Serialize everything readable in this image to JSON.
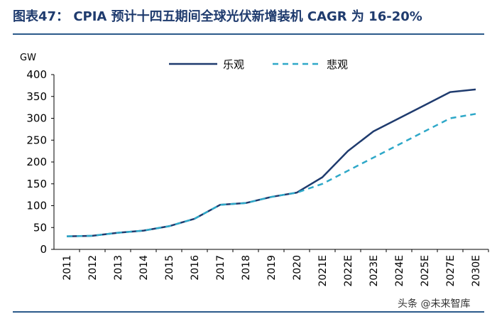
{
  "title": "图表47：   CPIA 预计十四五期间全球光伏新增装机 CAGR 为 16-20%",
  "watermark": "头条 @未来智库",
  "colors": {
    "series_1": "#1f3b6e",
    "series_2": "#2ea8c8",
    "title": "#1f3b6e",
    "rule": "#2b5a8a"
  },
  "chart_data": {
    "type": "line",
    "title": "CPIA 预计十四五期间全球光伏新增装机 CAGR 为 16-20%",
    "xlabel": "",
    "ylabel": "GW",
    "ylim": [
      0,
      400
    ],
    "yticks": [
      0,
      50,
      100,
      150,
      200,
      250,
      300,
      350,
      400
    ],
    "categories": [
      "2011",
      "2012",
      "2013",
      "2014",
      "2015",
      "2016",
      "2017",
      "2018",
      "2019",
      "2020",
      "2021E",
      "2022E",
      "2023E",
      "2024E",
      "2025E",
      "2027E",
      "2030E"
    ],
    "series": [
      {
        "name": "乐观",
        "style": "solid",
        "values": [
          30,
          31,
          38,
          43,
          53,
          70,
          102,
          106,
          120,
          130,
          165,
          225,
          270,
          300,
          330,
          360,
          366
        ]
      },
      {
        "name": "悲观",
        "style": "dashed",
        "values": [
          30,
          31,
          38,
          43,
          53,
          70,
          102,
          106,
          120,
          130,
          150,
          180,
          210,
          240,
          270,
          300,
          310
        ]
      }
    ],
    "legend": "top-center",
    "grid": false
  }
}
